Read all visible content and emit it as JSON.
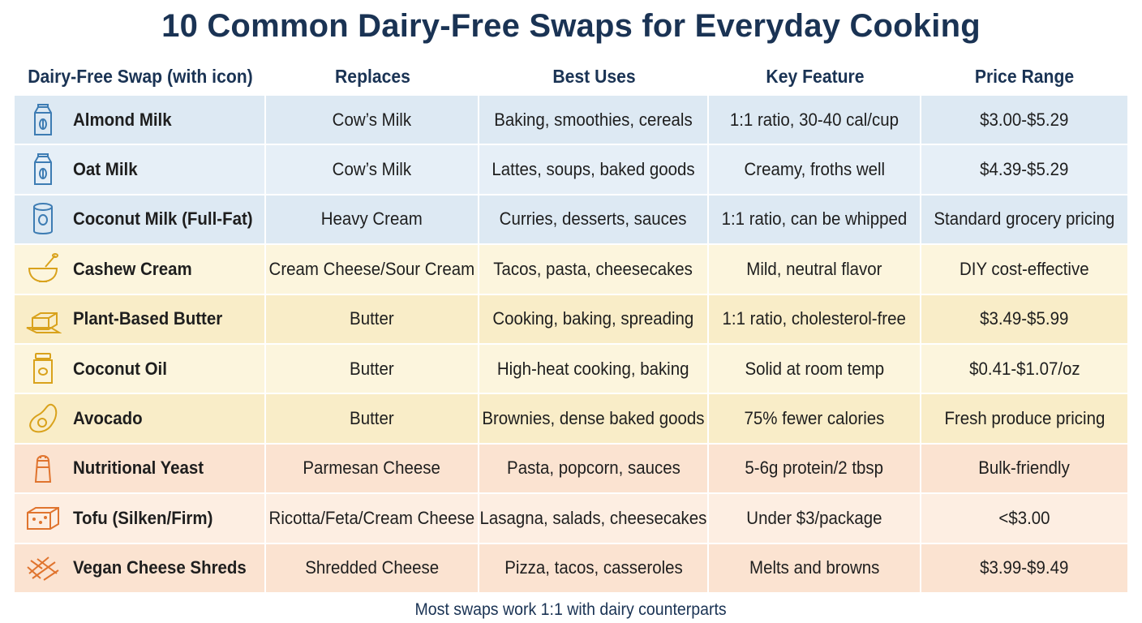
{
  "title": "10 Common Dairy-Free Swaps for Everyday Cooking",
  "headers": [
    "Dairy-Free Swap (with icon)",
    "Replaces",
    "Best Uses",
    "Key Feature",
    "Price Range"
  ],
  "rows": [
    {
      "icon": "milk-carton-icon",
      "name": "Almond Milk",
      "replaces": "Cow’s Milk",
      "uses": "Baking, smoothies, cereals",
      "feature": "1:1 ratio, 30-40 cal/cup",
      "price": "$3.00-$5.29",
      "bg": "#dde9f3"
    },
    {
      "icon": "milk-carton-icon",
      "name": "Oat Milk",
      "replaces": "Cow’s Milk",
      "uses": "Lattes, soups, baked goods",
      "feature": "Creamy, froths well",
      "price": "$4.39-$5.29",
      "bg": "#e6eff7"
    },
    {
      "icon": "can-icon",
      "name": "Coconut Milk (Full-Fat)",
      "replaces": "Heavy Cream",
      "uses": "Curries, desserts, sauces",
      "feature": "1:1 ratio, can be whipped",
      "price": "Standard grocery pricing",
      "bg": "#dde9f3"
    },
    {
      "icon": "bowl-icon",
      "name": "Cashew Cream",
      "replaces": "Cream Cheese/Sour Cream",
      "uses": "Tacos, pasta, cheesecakes",
      "feature": "Mild, neutral flavor",
      "price": "DIY cost-effective",
      "bg": "#fcf5dd"
    },
    {
      "icon": "butter-icon",
      "name": "Plant-Based Butter",
      "replaces": "Butter",
      "uses": "Cooking, baking, spreading",
      "feature": "1:1 ratio, cholesterol-free",
      "price": "$3.49-$5.99",
      "bg": "#f9edc8"
    },
    {
      "icon": "jar-icon",
      "name": "Coconut Oil",
      "replaces": "Butter",
      "uses": "High-heat cooking, baking",
      "feature": "Solid at room temp",
      "price": "$0.41-$1.07/oz",
      "bg": "#fcf5dd"
    },
    {
      "icon": "avocado-icon",
      "name": "Avocado",
      "replaces": "Butter",
      "uses": "Brownies, dense baked goods",
      "feature": "75% fewer calories",
      "price": "Fresh produce pricing",
      "bg": "#f9edc8"
    },
    {
      "icon": "shaker-icon",
      "name": "Nutritional Yeast",
      "replaces": "Parmesan Cheese",
      "uses": "Pasta, popcorn, sauces",
      "feature": "5-6g protein/2 tbsp",
      "price": "Bulk-friendly",
      "bg": "#fbe3d1"
    },
    {
      "icon": "tofu-icon",
      "name": "Tofu (Silken/Firm)",
      "replaces": "Ricotta/Feta/Cream Cheese",
      "uses": "Lasagna, salads, cheesecakes",
      "feature": "Under $3/package",
      "price": "<$3.00",
      "bg": "#fdeee2"
    },
    {
      "icon": "cheese-shreds-icon",
      "name": "Vegan Cheese Shreds",
      "replaces": "Shredded Cheese",
      "uses": "Pizza, tacos, casseroles",
      "feature": "Melts and browns",
      "price": "$3.99-$9.49",
      "bg": "#fbe3d1"
    }
  ],
  "footer": "Most swaps work 1:1 with dairy counterparts",
  "colors": {
    "title": "#1a3354",
    "blue_icon": "#3d7cb3",
    "gold_icon": "#d9a21c",
    "orange_icon": "#e0742e"
  }
}
